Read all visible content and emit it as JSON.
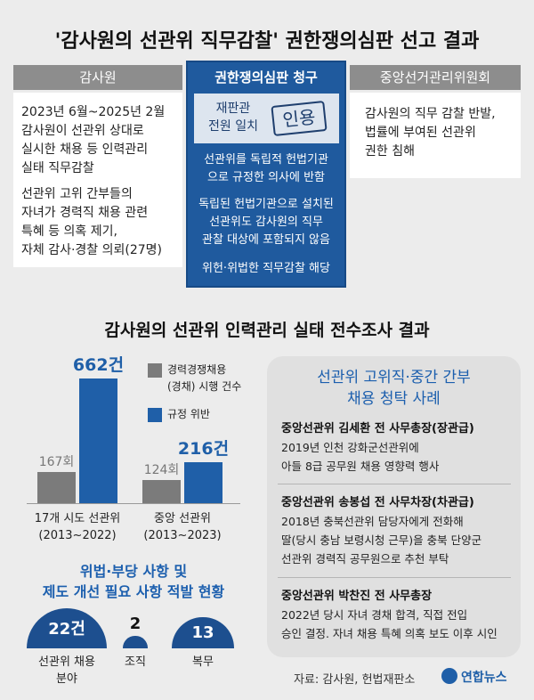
{
  "title": "'감사원의 선관위 직무감찰' 권한쟁의심판 선고 결과",
  "panels": {
    "left": {
      "header": "감사원",
      "paragraphs": [
        "2023년 6월~2025년 2월\n감사원이 선관위 상대로\n실시한 채용 등 인력관리\n실태 직무감찰",
        "선관위 고위 간부들의\n자녀가 경력직 채용 관련\n특혜 등 의혹 제기,\n자체 감사·경찰 의뢰(27명)"
      ]
    },
    "center": {
      "header": "권한쟁의심판 청구",
      "verdict_note": "재판관\n전원 일치",
      "verdict": "인용",
      "paragraphs": [
        "선관위를 독립적 헌법기관\n으로 규정한 의사에 반함",
        "독립된 헌법기관으로 설치된\n선관위도 감사원의 직무\n관찰 대상에 포함되지 않음",
        "위헌·위법한 직무감찰 해당"
      ]
    },
    "right": {
      "header": "중앙선거관리위원회",
      "paragraphs": [
        "감사원의 직무 감찰 반발,\n법률에 부여된 선관위\n권한 침해"
      ]
    }
  },
  "section_title": "감사원의 선관위 인력관리 실태 전수조사 결과",
  "chart_data": {
    "type": "bar",
    "categories": [
      "17개 시도 선관위\n(2013~2022)",
      "중앙 선관위\n(2013~2023)"
    ],
    "series": [
      {
        "name": "경력경쟁채용\n(경채) 시행 건수",
        "color": "#7b7b7b",
        "values": [
          167,
          124
        ],
        "value_labels": [
          "167회",
          "124회"
        ]
      },
      {
        "name": "규정 위반",
        "color": "#1f5fa8",
        "values": [
          662,
          216
        ],
        "value_labels": [
          "662건",
          "216건"
        ]
      }
    ]
  },
  "cases": {
    "title": "선관위 고위직·중간 간부\n채용 청탁 사례",
    "items": [
      {
        "heading": "중앙선관위 김세환 전 사무총장(장관급)",
        "text": "2019년 인천 강화군선관위에\n아들 8급 공무원 채용 영향력 행사"
      },
      {
        "heading": "중앙선관위 송봉섭 전 사무차장(차관급)",
        "text": "2018년 충북선관위 담당자에게 전화해\n딸(당시 충남 보령시청 근무)을 충북 단양군\n선관위 경력직 공무원으로 추천 부탁"
      },
      {
        "heading": "중앙선관위 박찬진 전 사무총장",
        "text": "2022년 당시 자녀 경채 합격, 직접 전입\n승인 결정. 자녀 채용 특혜 의혹 보도 이후 시인"
      }
    ]
  },
  "findings": {
    "title": "위법·부당 사항 및\n제도 개선 필요 사항 적발 현황",
    "color": "#1d4f8f",
    "items": [
      {
        "name": "선관위 채용\n분야",
        "value": 22,
        "value_label": "22건"
      },
      {
        "name": "조직",
        "value": 2,
        "value_label": "2"
      },
      {
        "name": "복무",
        "value": 13,
        "value_label": "13"
      }
    ]
  },
  "source": "자료: 감사원, 헌법재판소",
  "logo": "연합뉴스"
}
